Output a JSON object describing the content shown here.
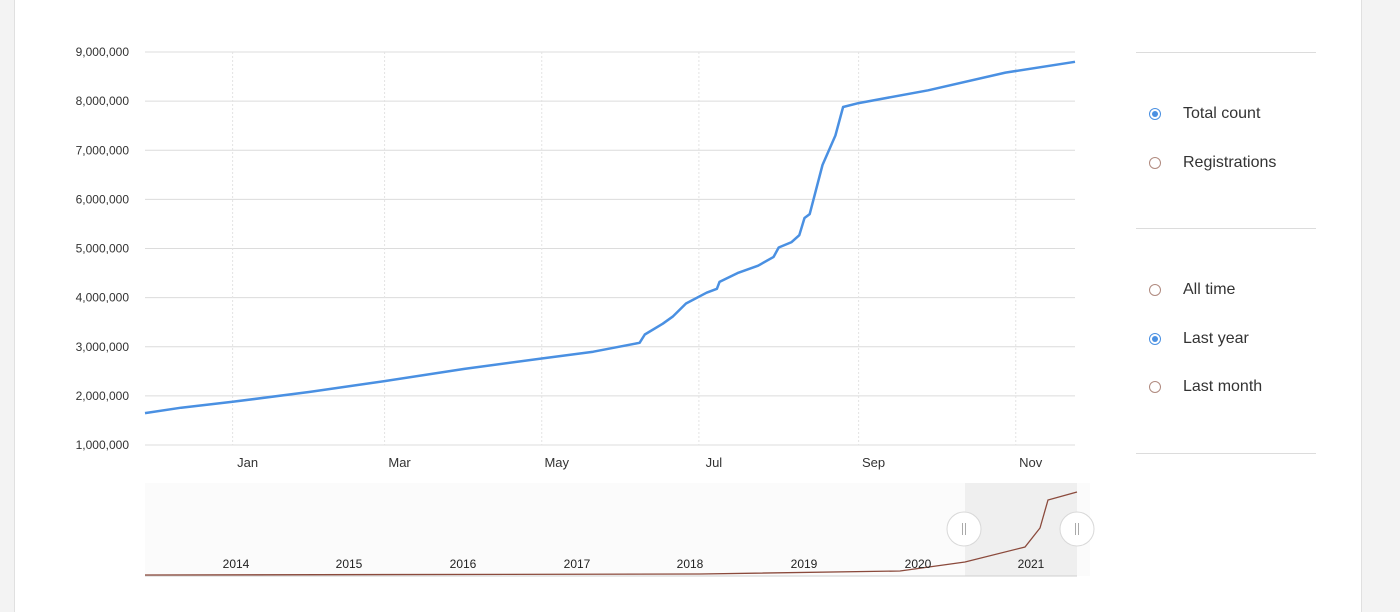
{
  "chart_data": {
    "type": "line",
    "y_ticks": [
      "9,000,000",
      "8,000,000",
      "7,000,000",
      "6,000,000",
      "5,000,000",
      "4,000,000",
      "3,000,000",
      "2,000,000",
      "1,000,000"
    ],
    "y_values": [
      9000000,
      8000000,
      7000000,
      6000000,
      5000000,
      4000000,
      3000000,
      2000000,
      1000000
    ],
    "ylim": [
      1000000,
      9000000
    ],
    "x_ticks": [
      "Jan",
      "Mar",
      "May",
      "Jul",
      "Sep",
      "Nov"
    ],
    "x_tick_days": [
      0,
      59,
      120,
      181,
      243,
      304
    ],
    "xlim_days": [
      -34,
      327
    ],
    "grid": true,
    "series": [
      {
        "color": "#4a90e2",
        "points": [
          {
            "day": -34,
            "value": 1650000
          },
          {
            "day": -20,
            "value": 1760000
          },
          {
            "day": 0,
            "value": 1880000
          },
          {
            "day": 30,
            "value": 2080000
          },
          {
            "day": 59,
            "value": 2300000
          },
          {
            "day": 90,
            "value": 2550000
          },
          {
            "day": 120,
            "value": 2760000
          },
          {
            "day": 140,
            "value": 2900000
          },
          {
            "day": 158,
            "value": 3080000
          },
          {
            "day": 160,
            "value": 3250000
          },
          {
            "day": 167,
            "value": 3470000
          },
          {
            "day": 171,
            "value": 3620000
          },
          {
            "day": 176,
            "value": 3880000
          },
          {
            "day": 184,
            "value": 4100000
          },
          {
            "day": 188,
            "value": 4180000
          },
          {
            "day": 189,
            "value": 4320000
          },
          {
            "day": 196,
            "value": 4500000
          },
          {
            "day": 204,
            "value": 4650000
          },
          {
            "day": 210,
            "value": 4830000
          },
          {
            "day": 212,
            "value": 5020000
          },
          {
            "day": 217,
            "value": 5130000
          },
          {
            "day": 220,
            "value": 5270000
          },
          {
            "day": 222,
            "value": 5620000
          },
          {
            "day": 224,
            "value": 5700000
          },
          {
            "day": 229,
            "value": 6700000
          },
          {
            "day": 234,
            "value": 7300000
          },
          {
            "day": 237,
            "value": 7880000
          },
          {
            "day": 243,
            "value": 7960000
          },
          {
            "day": 270,
            "value": 8220000
          },
          {
            "day": 300,
            "value": 8580000
          },
          {
            "day": 327,
            "value": 8800000
          }
        ]
      }
    ]
  },
  "navigator": {
    "years": [
      "2014",
      "2015",
      "2016",
      "2017",
      "2018",
      "2019",
      "2020",
      "2021"
    ],
    "line_color": "#8b4a3c",
    "selection_fill": "#efefef"
  },
  "metric_options": [
    {
      "label": "Total count",
      "selected": true
    },
    {
      "label": "Registrations",
      "selected": false
    }
  ],
  "range_options": [
    {
      "label": "All time",
      "selected": false
    },
    {
      "label": "Last year",
      "selected": true
    },
    {
      "label": "Last month",
      "selected": false
    }
  ],
  "colors": {
    "accent": "#4a90e2",
    "radio_border": "#b08a7f"
  }
}
